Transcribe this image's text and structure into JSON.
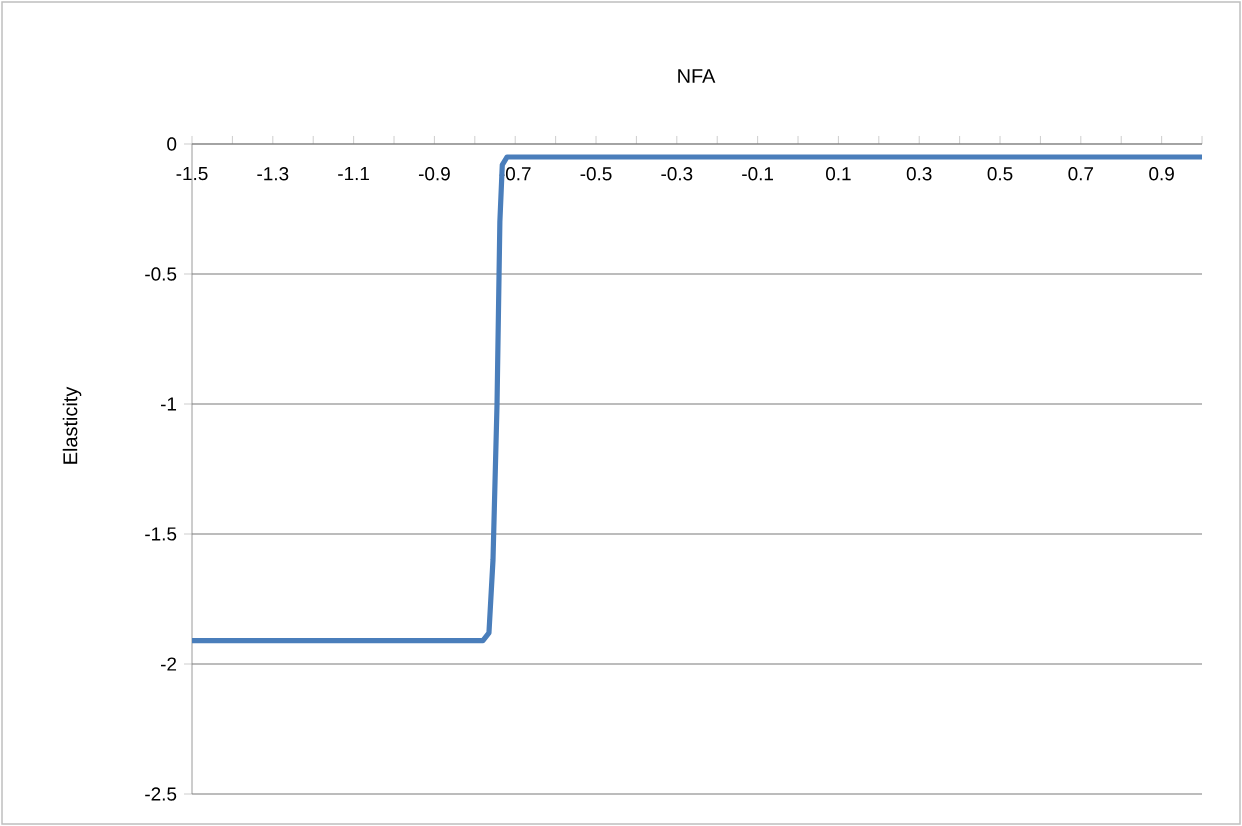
{
  "chart_data": {
    "type": "line",
    "title": "NFA",
    "ylabel": "Elasticity",
    "x": [
      -1.5,
      -0.78,
      -0.765,
      -0.755,
      -0.745,
      -0.738,
      -0.732,
      -0.72,
      1.0
    ],
    "series": [
      {
        "color": "#4a7ebb",
        "values": [
          -1.91,
          -1.91,
          -1.88,
          -1.6,
          -1.0,
          -0.3,
          -0.08,
          -0.05,
          -0.05
        ]
      }
    ],
    "xlim": [
      -1.5,
      1.0
    ],
    "xticks": [
      -1.5,
      {
        "value": -1.4,
        "label": null
      },
      -1.3,
      {
        "value": -1.2,
        "label": null
      },
      -1.1,
      {
        "value": -1.0,
        "label": null
      },
      -0.9,
      {
        "value": -0.8,
        "label": null
      },
      -0.7,
      {
        "value": -0.6,
        "label": null
      },
      -0.5,
      {
        "value": -0.4,
        "label": null
      },
      -0.3,
      {
        "value": -0.2,
        "label": null
      },
      -0.1,
      {
        "value": 0.0,
        "label": null
      },
      0.1,
      {
        "value": 0.2,
        "label": null
      },
      0.3,
      {
        "value": 0.4,
        "label": null
      },
      0.5,
      {
        "value": 0.6,
        "label": null
      },
      0.7,
      {
        "value": 0.8,
        "label": null
      },
      0.9,
      {
        "value": 1.0,
        "label": null
      }
    ],
    "ylim": [
      -2.5,
      0
    ],
    "yticks": [
      -2.5,
      -2,
      -1.5,
      -1,
      -0.5,
      0
    ],
    "grid": "y",
    "marker": "none",
    "line_style": "solid"
  }
}
